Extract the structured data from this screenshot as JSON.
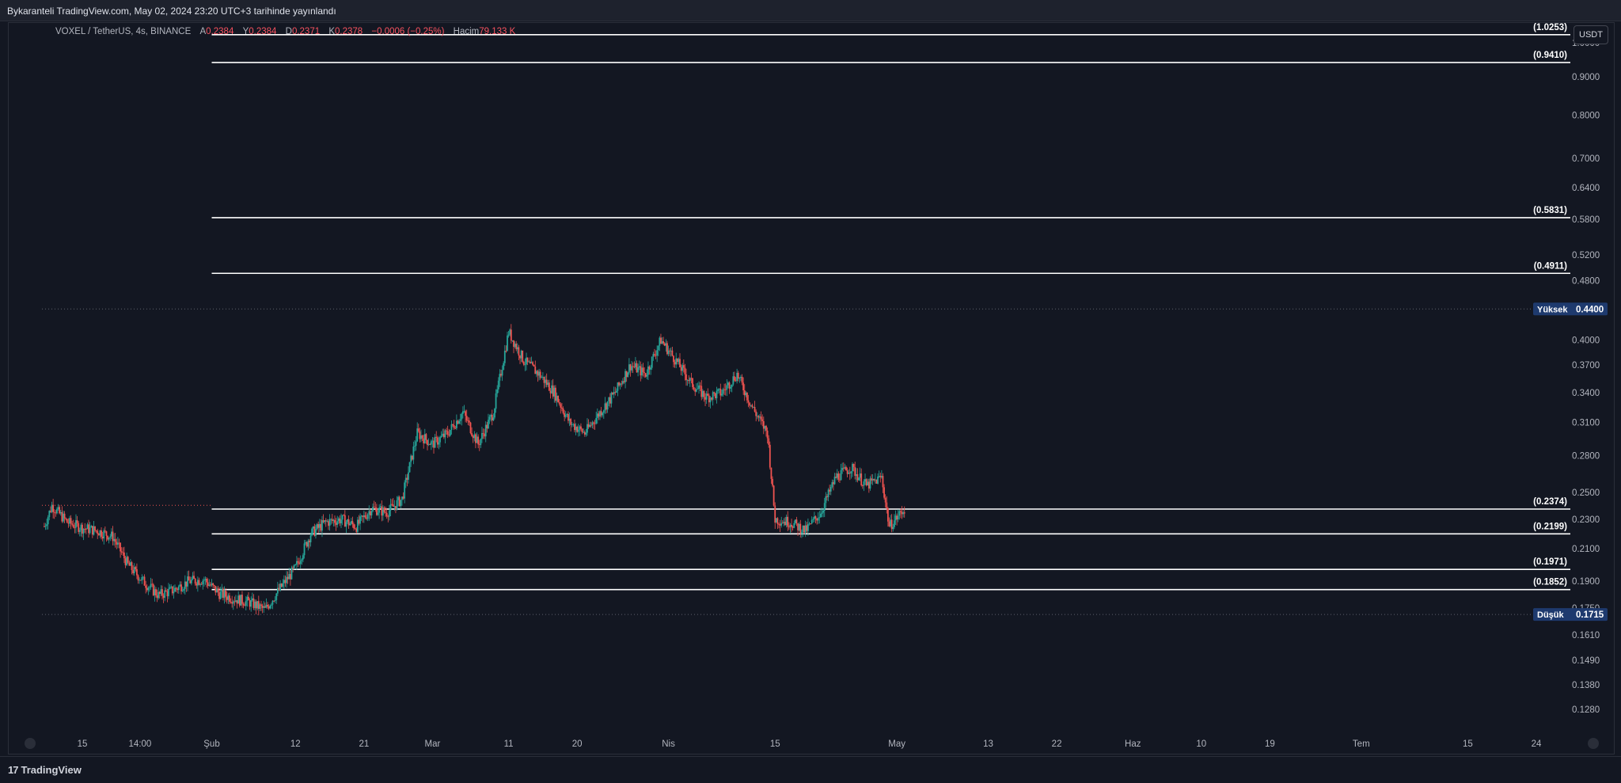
{
  "header": {
    "title": "Bykaranteli TradingView.com, May 02, 2024 23:20 UTC+3 tarihinde yayınlandı"
  },
  "legend": {
    "symbol": "VOXEL / TetherUS, 4s, BINANCE",
    "open_label": "A",
    "open": "0.2384",
    "high_label": "Y",
    "high": "0.2384",
    "low_label": "D",
    "low": "0.2371",
    "close_label": "K",
    "close": "0.2378",
    "change": "−0.0006 (−0.25%)",
    "volume_label": "Hacim",
    "volume": "79.133 K"
  },
  "currency_button": "USDT",
  "footer": {
    "logo": "TradingView",
    "logo_mark": "17"
  },
  "colors": {
    "up": "#26a69a",
    "down": "#ef5350",
    "level_line": "#ffffff",
    "badge": "#1e3a6e",
    "background": "#131722"
  },
  "chart_data": {
    "type": "candlestick",
    "y_scale": "log",
    "y_ticks": [
      "1.0000",
      "0.9000",
      "0.8000",
      "0.7000",
      "0.6400",
      "0.5800",
      "0.5200",
      "0.4800",
      "0.4000",
      "0.3700",
      "0.3400",
      "0.3100",
      "0.2800",
      "0.2500",
      "0.2300",
      "0.2100",
      "0.1900",
      "0.1750",
      "0.1610",
      "0.1490",
      "0.1380",
      "0.1280"
    ],
    "x_ticks": [
      {
        "label": "15",
        "date": "2024-01-15"
      },
      {
        "label": "14:00",
        "date": "2024-01-22T14:00"
      },
      {
        "label": "Şub",
        "date": "2024-02-01"
      },
      {
        "label": "12",
        "date": "2024-02-12"
      },
      {
        "label": "21",
        "date": "2024-02-21"
      },
      {
        "label": "Mar",
        "date": "2024-03-01"
      },
      {
        "label": "11",
        "date": "2024-03-11"
      },
      {
        "label": "20",
        "date": "2024-03-20"
      },
      {
        "label": "Nis",
        "date": "2024-04-01"
      },
      {
        "label": "15",
        "date": "2024-04-15"
      },
      {
        "label": "May",
        "date": "2024-05-01"
      },
      {
        "label": "13",
        "date": "2024-05-13"
      },
      {
        "label": "22",
        "date": "2024-05-22"
      },
      {
        "label": "Haz",
        "date": "2024-06-01"
      },
      {
        "label": "10",
        "date": "2024-06-10"
      },
      {
        "label": "19",
        "date": "2024-06-19"
      },
      {
        "label": "Tem",
        "date": "2024-07-01"
      },
      {
        "label": "15",
        "date": "2024-07-15"
      },
      {
        "label": "24",
        "date": "2024-07-24"
      }
    ],
    "x_range": [
      "2024-01-10",
      "2024-07-31"
    ],
    "levels": [
      {
        "label": "(1.0253)",
        "value": 1.0253
      },
      {
        "label": "(0.9410)",
        "value": 0.941
      },
      {
        "label": "(0.5831)",
        "value": 0.5831
      },
      {
        "label": "(0.4911)",
        "value": 0.4911
      },
      {
        "label": "(0.2374)",
        "value": 0.2374
      },
      {
        "label": "(0.2199)",
        "value": 0.2199
      },
      {
        "label": "(0.1971)",
        "value": 0.1971
      },
      {
        "label": "(0.1852)",
        "value": 0.1852
      }
    ],
    "levels_start_date": "2024-02-01",
    "high_marker": {
      "label": "Yüksek",
      "value": "0.4400"
    },
    "low_marker": {
      "label": "Düşük",
      "value": "0.1715"
    },
    "last_price": 0.2378,
    "price_path": [
      [
        "2024-01-10",
        0.225
      ],
      [
        "2024-01-11",
        0.24
      ],
      [
        "2024-01-13",
        0.228
      ],
      [
        "2024-01-15",
        0.224
      ],
      [
        "2024-01-17",
        0.222
      ],
      [
        "2024-01-19",
        0.218
      ],
      [
        "2024-01-21",
        0.2
      ],
      [
        "2024-01-23",
        0.19
      ],
      [
        "2024-01-25",
        0.182
      ],
      [
        "2024-01-27",
        0.185
      ],
      [
        "2024-01-29",
        0.19
      ],
      [
        "2024-01-31",
        0.191
      ],
      [
        "2024-02-02",
        0.183
      ],
      [
        "2024-02-04",
        0.18
      ],
      [
        "2024-02-06",
        0.178
      ],
      [
        "2024-02-08",
        0.174
      ],
      [
        "2024-02-10",
        0.186
      ],
      [
        "2024-02-12",
        0.198
      ],
      [
        "2024-02-14",
        0.22
      ],
      [
        "2024-02-16",
        0.228
      ],
      [
        "2024-02-18",
        0.23
      ],
      [
        "2024-02-20",
        0.225
      ],
      [
        "2024-02-22",
        0.238
      ],
      [
        "2024-02-24",
        0.235
      ],
      [
        "2024-02-26",
        0.245
      ],
      [
        "2024-02-28",
        0.3
      ],
      [
        "2024-03-01",
        0.29
      ],
      [
        "2024-03-03",
        0.3
      ],
      [
        "2024-03-05",
        0.32
      ],
      [
        "2024-03-07",
        0.29
      ],
      [
        "2024-03-09",
        0.32
      ],
      [
        "2024-03-11",
        0.41
      ],
      [
        "2024-03-13",
        0.375
      ],
      [
        "2024-03-15",
        0.36
      ],
      [
        "2024-03-17",
        0.34
      ],
      [
        "2024-03-19",
        0.31
      ],
      [
        "2024-03-21",
        0.3
      ],
      [
        "2024-03-23",
        0.32
      ],
      [
        "2024-03-25",
        0.34
      ],
      [
        "2024-03-27",
        0.37
      ],
      [
        "2024-03-29",
        0.36
      ],
      [
        "2024-03-31",
        0.4
      ],
      [
        "2024-04-02",
        0.375
      ],
      [
        "2024-04-04",
        0.35
      ],
      [
        "2024-04-06",
        0.335
      ],
      [
        "2024-04-08",
        0.34
      ],
      [
        "2024-04-10",
        0.36
      ],
      [
        "2024-04-12",
        0.325
      ],
      [
        "2024-04-14",
        0.3
      ],
      [
        "2024-04-15",
        0.23
      ],
      [
        "2024-04-17",
        0.228
      ],
      [
        "2024-04-19",
        0.222
      ],
      [
        "2024-04-21",
        0.235
      ],
      [
        "2024-04-23",
        0.262
      ],
      [
        "2024-04-25",
        0.27
      ],
      [
        "2024-04-27",
        0.255
      ],
      [
        "2024-04-29",
        0.262
      ],
      [
        "2024-04-30",
        0.225
      ],
      [
        "2024-05-02",
        0.2378
      ]
    ]
  }
}
